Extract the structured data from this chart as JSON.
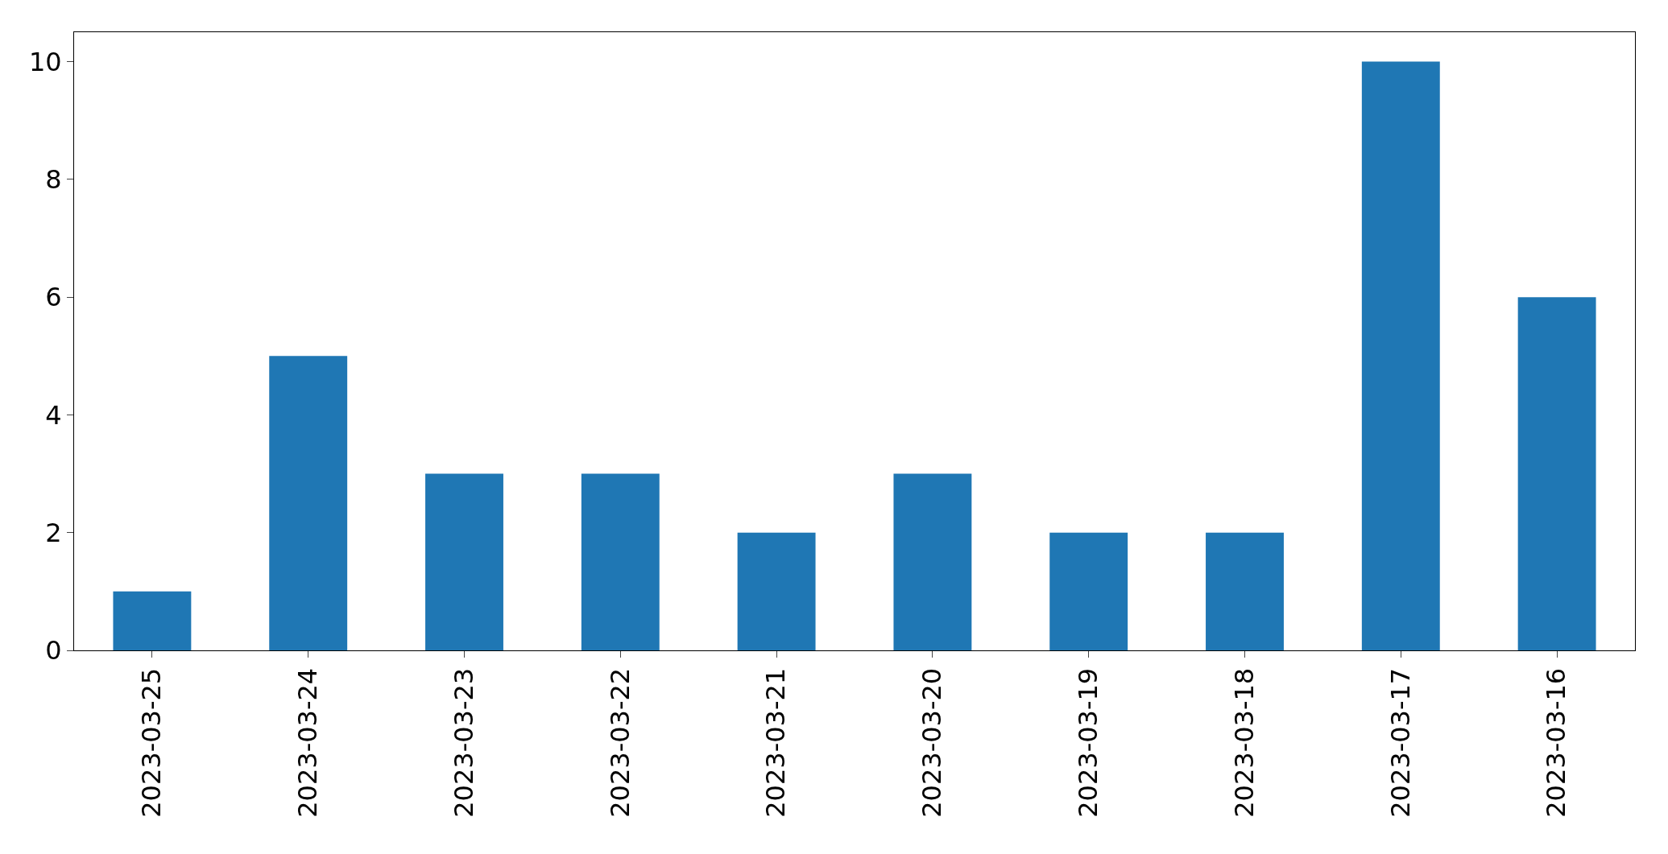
{
  "chart_data": {
    "type": "bar",
    "categories": [
      "2023-03-25",
      "2023-03-24",
      "2023-03-23",
      "2023-03-22",
      "2023-03-21",
      "2023-03-20",
      "2023-03-19",
      "2023-03-18",
      "2023-03-17",
      "2023-03-16"
    ],
    "values": [
      1,
      5,
      3,
      3,
      2,
      3,
      2,
      2,
      10,
      6
    ],
    "color": "#1f77b4",
    "ylim": [
      0,
      10.5
    ],
    "yticks": [
      0,
      2,
      4,
      6,
      8,
      10
    ]
  }
}
